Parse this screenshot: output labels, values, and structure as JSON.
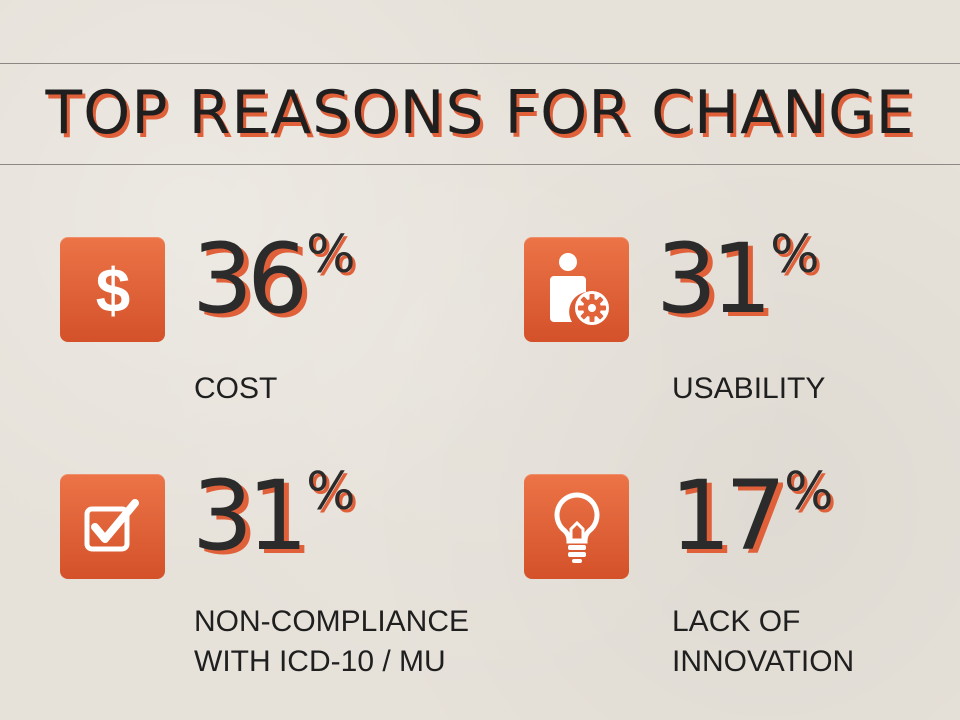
{
  "title": "TOP REASONS FOR CHANGE",
  "reasons": [
    {
      "icon": "dollar-icon",
      "value": "36",
      "unit": "%",
      "label_lines": [
        "COST"
      ]
    },
    {
      "icon": "user-gear-icon",
      "value": "31",
      "unit": "%",
      "label_lines": [
        "USABILITY"
      ]
    },
    {
      "icon": "checkbox-icon",
      "value": "31",
      "unit": "%",
      "label_lines": [
        "NON-COMPLIANCE",
        "WITH ICD-10 / MU"
      ]
    },
    {
      "icon": "lightbulb-icon",
      "value": "17",
      "unit": "%",
      "label_lines": [
        "LACK OF",
        "INNOVATION"
      ]
    }
  ],
  "colors": {
    "accent": "#e0603a",
    "icon_bg": "#e2643a",
    "text": "#1f1f1f",
    "background": "#e6e1d9"
  }
}
